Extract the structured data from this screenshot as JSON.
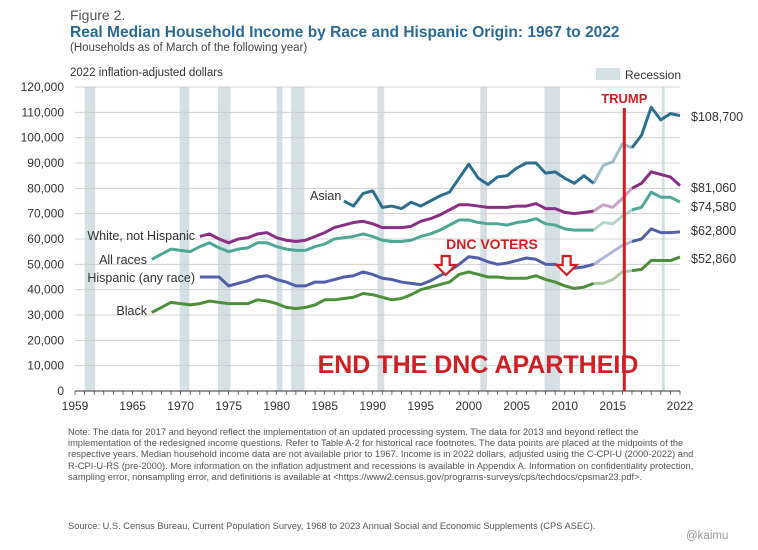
{
  "figure_label": "Figure 2.",
  "title": "Real Median Household Income by Race and Hispanic Origin: 1967 to 2022",
  "subtitle": "(Households as of March of the following year)",
  "colors": {
    "recession": "#d5e0e4",
    "asian": "#2e6f8e",
    "white_not_hispanic": "#8a2f83",
    "all_races": "#4fa895",
    "hispanic": "#5260aa",
    "black": "#4e8f3c",
    "overlay": "#d11f26"
  },
  "annotations": {
    "trump_label": "TRUMP",
    "trump_line_year": 2016.2,
    "dnc_voters_label": "DNC  VOTERS",
    "dnc_arrow_years": [
      1997.6,
      2010.2
    ],
    "headline": "END THE DNC APARTHEID"
  },
  "chart_data": {
    "type": "line",
    "ylabel": "2022 inflation-adjusted dollars",
    "xlim": [
      1959,
      2022
    ],
    "ylim": [
      0,
      120000
    ],
    "x_ticks": [
      1959,
      1965,
      1970,
      1975,
      1980,
      1985,
      1990,
      1995,
      2000,
      2005,
      2010,
      2015,
      2022
    ],
    "y_ticks": [
      0,
      10000,
      20000,
      30000,
      40000,
      50000,
      60000,
      70000,
      80000,
      90000,
      100000,
      110000,
      120000
    ],
    "y_tick_labels": [
      "0",
      "10,000",
      "20,000",
      "30,000",
      "40,000",
      "50,000",
      "60,000",
      "70,000",
      "80,000",
      "90,000",
      "100,000",
      "110,000",
      "120,000"
    ],
    "legend": "top-right",
    "recession_label": "Recession",
    "recessions": [
      [
        1960.0,
        1961.1
      ],
      [
        1969.9,
        1970.9
      ],
      [
        1973.9,
        1975.2
      ],
      [
        1980.0,
        1980.6
      ],
      [
        1981.5,
        1982.9
      ],
      [
        1990.5,
        1991.2
      ],
      [
        2001.2,
        2001.9
      ],
      [
        2007.9,
        2009.5
      ],
      [
        2020.1,
        2020.4
      ]
    ],
    "series": [
      {
        "name": "Asian",
        "key": "asian",
        "end_label": "$108,700",
        "x": [
          1987,
          1988,
          1989,
          1990,
          1991,
          1992,
          1993,
          1994,
          1995,
          1996,
          1997,
          1998,
          1999,
          2000,
          2001,
          2002,
          2003,
          2004,
          2005,
          2006,
          2007,
          2008,
          2009,
          2010,
          2011,
          2012,
          2013,
          2014,
          2015,
          2016,
          2017,
          2018,
          2019,
          2020,
          2021,
          2022
        ],
        "y": [
          75000,
          73000,
          78000,
          79000,
          72500,
          73000,
          72000,
          74500,
          73000,
          75000,
          77000,
          78500,
          84000,
          89500,
          84000,
          81500,
          84500,
          85000,
          88000,
          90000,
          90000,
          86000,
          86500,
          84000,
          82000,
          85000,
          82000,
          89000,
          90500,
          97500,
          96000,
          101000,
          112000,
          107000,
          109500,
          108700
        ]
      },
      {
        "name": "White, not Hispanic",
        "key": "white_not_hispanic",
        "end_label": "$81,060",
        "x": [
          1972,
          1973,
          1974,
          1975,
          1976,
          1977,
          1978,
          1979,
          1980,
          1981,
          1982,
          1983,
          1984,
          1985,
          1986,
          1987,
          1988,
          1989,
          1990,
          1991,
          1992,
          1993,
          1994,
          1995,
          1996,
          1997,
          1998,
          1999,
          2000,
          2001,
          2002,
          2003,
          2004,
          2005,
          2006,
          2007,
          2008,
          2009,
          2010,
          2011,
          2012,
          2013,
          2014,
          2015,
          2016,
          2017,
          2018,
          2019,
          2020,
          2021,
          2022
        ],
        "y": [
          61000,
          62000,
          60000,
          58500,
          60000,
          60500,
          62000,
          62500,
          60500,
          59500,
          59000,
          59500,
          61000,
          62500,
          64500,
          65500,
          66500,
          67000,
          66000,
          64500,
          64500,
          64500,
          65000,
          67000,
          68000,
          69500,
          71500,
          73500,
          73500,
          73000,
          72500,
          72500,
          72500,
          73000,
          73000,
          74000,
          72000,
          72000,
          70500,
          70000,
          70500,
          71000,
          73500,
          72500,
          76000,
          80000,
          82000,
          86500,
          85500,
          84500,
          81060
        ]
      },
      {
        "name": "All races",
        "key": "all_races",
        "end_label": "$74,580",
        "x": [
          1967,
          1968,
          1969,
          1970,
          1971,
          1972,
          1973,
          1974,
          1975,
          1976,
          1977,
          1978,
          1979,
          1980,
          1981,
          1982,
          1983,
          1984,
          1985,
          1986,
          1987,
          1988,
          1989,
          1990,
          1991,
          1992,
          1993,
          1994,
          1995,
          1996,
          1997,
          1998,
          1999,
          2000,
          2001,
          2002,
          2003,
          2004,
          2005,
          2006,
          2007,
          2008,
          2009,
          2010,
          2011,
          2012,
          2013,
          2014,
          2015,
          2016,
          2017,
          2018,
          2019,
          2020,
          2021,
          2022
        ],
        "y": [
          52000,
          54000,
          56000,
          55500,
          55000,
          57000,
          58500,
          56500,
          55000,
          56000,
          56500,
          58500,
          58500,
          57000,
          56000,
          55500,
          55500,
          57000,
          58000,
          60000,
          60500,
          61000,
          62000,
          61000,
          59500,
          59000,
          59000,
          59500,
          61000,
          62000,
          63500,
          65500,
          67500,
          67500,
          66500,
          66000,
          66000,
          65500,
          66500,
          67000,
          68000,
          66000,
          65500,
          64000,
          63500,
          63500,
          63500,
          66500,
          66000,
          69000,
          71500,
          72500,
          78500,
          76500,
          76500,
          74580
        ]
      },
      {
        "name": "Hispanic (any race)",
        "key": "hispanic",
        "end_label": "$62,800",
        "x": [
          1972,
          1973,
          1974,
          1975,
          1976,
          1977,
          1978,
          1979,
          1980,
          1981,
          1982,
          1983,
          1984,
          1985,
          1986,
          1987,
          1988,
          1989,
          1990,
          1991,
          1992,
          1993,
          1994,
          1995,
          1996,
          1997,
          1998,
          1999,
          2000,
          2001,
          2002,
          2003,
          2004,
          2005,
          2006,
          2007,
          2008,
          2009,
          2010,
          2011,
          2012,
          2013,
          2014,
          2015,
          2016,
          2017,
          2018,
          2019,
          2020,
          2021,
          2022
        ],
        "y": [
          45000,
          45000,
          45000,
          41500,
          42500,
          43500,
          45000,
          45500,
          44000,
          43000,
          41500,
          41500,
          43000,
          43000,
          44000,
          45000,
          45500,
          47000,
          46000,
          44500,
          44000,
          43000,
          42500,
          42000,
          43500,
          45500,
          47500,
          50000,
          53000,
          52500,
          51000,
          50000,
          50500,
          51500,
          52500,
          52000,
          50000,
          50000,
          48500,
          48500,
          49000,
          50000,
          52500,
          55000,
          57500,
          59000,
          60000,
          64000,
          62500,
          62500,
          62800
        ]
      },
      {
        "name": "Black",
        "key": "black",
        "end_label": "$52,860",
        "x": [
          1967,
          1968,
          1969,
          1970,
          1971,
          1972,
          1973,
          1974,
          1975,
          1976,
          1977,
          1978,
          1979,
          1980,
          1981,
          1982,
          1983,
          1984,
          1985,
          1986,
          1987,
          1988,
          1989,
          1990,
          1991,
          1992,
          1993,
          1994,
          1995,
          1996,
          1997,
          1998,
          1999,
          2000,
          2001,
          2002,
          2003,
          2004,
          2005,
          2006,
          2007,
          2008,
          2009,
          2010,
          2011,
          2012,
          2013,
          2014,
          2015,
          2016,
          2017,
          2018,
          2019,
          2020,
          2021,
          2022
        ],
        "y": [
          31000,
          33000,
          35000,
          34500,
          34000,
          34500,
          35500,
          35000,
          34500,
          34500,
          34500,
          36000,
          35500,
          34500,
          33000,
          32500,
          33000,
          34000,
          36000,
          36000,
          36500,
          37000,
          38500,
          38000,
          37000,
          36000,
          36500,
          38000,
          40000,
          41000,
          42000,
          43000,
          46000,
          47000,
          46000,
          45000,
          45000,
          44500,
          44500,
          44500,
          45500,
          44000,
          43000,
          41500,
          40500,
          41000,
          42500,
          42500,
          44000,
          47000,
          47500,
          48000,
          51500,
          51500,
          51500,
          52860
        ]
      }
    ]
  },
  "note_text": "Note: The data for 2017 and beyond reflect the implementation of an updated processing system. The data for 2013 and beyond reflect the implementation of the redesigned income questions. Refer to Table A-2 for historical race footnotes. The data points are placed at the midpoints of the respective years. Median household income data are not available prior to 1967. Income is in 2022 dollars, adjusted using the C-CPI-U (2000-2022) and R-CPI-U-RS (pre-2000). More information on the inflation adjustment and recessions is available in Appendix A. Information on confidentiality protection, sampling error, nonsampling error, and definitions is available at <https://www2.census.gov/programs-surveys/cps/techdocs/cpsmar23.pdf>.",
  "source_text": "Source: U.S. Census Bureau, Current Population Survey, 1968 to 2023 Annual Social and Economic Supplements (CPS ASEC).",
  "watermark": "@kaimu"
}
